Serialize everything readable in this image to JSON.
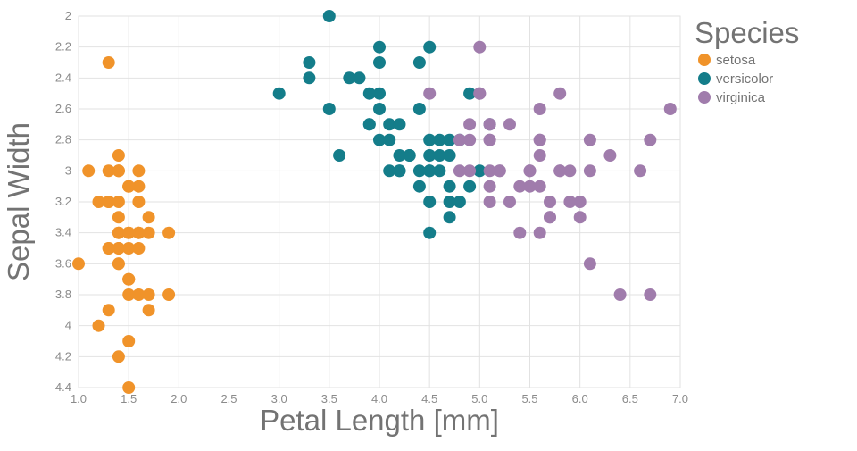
{
  "figure": {
    "xlabel": "Petal Length [mm]",
    "ylabel": "Sepal Width",
    "legend_title": "Species"
  },
  "colors": {
    "setosa": "#F0932A",
    "versicolor": "#147D8A",
    "virginica": "#A07CAC",
    "grid": "#E2E2E2",
    "tick_text": "#8B8B8B",
    "title_text": "#737373",
    "background": "#FFFFFF"
  },
  "chart_data": {
    "type": "scatter",
    "title": "",
    "xlabel": "Petal Length [mm]",
    "ylabel": "Sepal Width",
    "xlim": [
      1.0,
      7.0
    ],
    "ylim": [
      2.0,
      4.4
    ],
    "y_axis_reversed": true,
    "grid": true,
    "marker_radius": 7,
    "x_ticks": [
      "1.0",
      "1.5",
      "2.0",
      "2.5",
      "3.0",
      "3.5",
      "4.0",
      "4.5",
      "5.0",
      "5.5",
      "6.0",
      "6.5",
      "7.0"
    ],
    "y_ticks": [
      "2",
      "2.2",
      "2.4",
      "2.6",
      "2.8",
      "3",
      "3.2",
      "3.4",
      "3.6",
      "3.8",
      "4",
      "4.2",
      "4.4"
    ],
    "legend": {
      "title": "Species",
      "position": "right"
    },
    "series": [
      {
        "name": "setosa",
        "color": "#F0932A",
        "points": [
          [
            1.4,
            3.5
          ],
          [
            1.4,
            3.0
          ],
          [
            1.3,
            3.2
          ],
          [
            1.5,
            3.1
          ],
          [
            1.4,
            3.6
          ],
          [
            1.7,
            3.9
          ],
          [
            1.4,
            3.4
          ],
          [
            1.5,
            3.4
          ],
          [
            1.4,
            2.9
          ],
          [
            1.5,
            3.1
          ],
          [
            1.5,
            3.7
          ],
          [
            1.6,
            3.4
          ],
          [
            1.4,
            3.0
          ],
          [
            1.1,
            3.0
          ],
          [
            1.2,
            4.0
          ],
          [
            1.5,
            4.4
          ],
          [
            1.3,
            3.9
          ],
          [
            1.4,
            3.5
          ],
          [
            1.7,
            3.8
          ],
          [
            1.5,
            3.8
          ],
          [
            1.7,
            3.4
          ],
          [
            1.5,
            3.7
          ],
          [
            1.0,
            3.6
          ],
          [
            1.7,
            3.3
          ],
          [
            1.9,
            3.4
          ],
          [
            1.6,
            3.0
          ],
          [
            1.6,
            3.4
          ],
          [
            1.5,
            3.5
          ],
          [
            1.4,
            3.4
          ],
          [
            1.6,
            3.2
          ],
          [
            1.6,
            3.1
          ],
          [
            1.5,
            3.4
          ],
          [
            1.5,
            4.1
          ],
          [
            1.4,
            4.2
          ],
          [
            1.5,
            3.1
          ],
          [
            1.2,
            3.2
          ],
          [
            1.3,
            3.5
          ],
          [
            1.4,
            3.6
          ],
          [
            1.3,
            3.0
          ],
          [
            1.5,
            3.4
          ],
          [
            1.3,
            3.5
          ],
          [
            1.3,
            2.3
          ],
          [
            1.3,
            3.2
          ],
          [
            1.6,
            3.5
          ],
          [
            1.9,
            3.8
          ],
          [
            1.4,
            3.0
          ],
          [
            1.6,
            3.8
          ],
          [
            1.4,
            3.2
          ],
          [
            1.5,
            3.7
          ],
          [
            1.4,
            3.3
          ]
        ]
      },
      {
        "name": "versicolor",
        "color": "#147D8A",
        "points": [
          [
            4.7,
            3.2
          ],
          [
            4.5,
            3.2
          ],
          [
            4.9,
            3.1
          ],
          [
            4.0,
            2.3
          ],
          [
            4.6,
            2.8
          ],
          [
            4.5,
            2.8
          ],
          [
            4.7,
            3.3
          ],
          [
            3.3,
            2.4
          ],
          [
            4.6,
            2.9
          ],
          [
            3.9,
            2.7
          ],
          [
            3.5,
            2.0
          ],
          [
            4.2,
            3.0
          ],
          [
            4.0,
            2.2
          ],
          [
            4.7,
            2.9
          ],
          [
            3.6,
            2.9
          ],
          [
            4.4,
            3.1
          ],
          [
            4.5,
            3.0
          ],
          [
            4.1,
            2.7
          ],
          [
            4.5,
            2.2
          ],
          [
            3.9,
            2.5
          ],
          [
            4.8,
            3.2
          ],
          [
            4.0,
            2.8
          ],
          [
            4.9,
            2.5
          ],
          [
            4.7,
            2.8
          ],
          [
            4.3,
            2.9
          ],
          [
            4.4,
            3.0
          ],
          [
            4.8,
            2.8
          ],
          [
            5.0,
            3.0
          ],
          [
            4.5,
            2.9
          ],
          [
            3.5,
            2.6
          ],
          [
            3.8,
            2.4
          ],
          [
            3.7,
            2.4
          ],
          [
            3.9,
            2.7
          ],
          [
            5.1,
            2.7
          ],
          [
            4.5,
            3.0
          ],
          [
            4.5,
            3.4
          ],
          [
            4.7,
            3.1
          ],
          [
            4.4,
            2.3
          ],
          [
            4.1,
            3.0
          ],
          [
            4.0,
            2.5
          ],
          [
            4.4,
            2.6
          ],
          [
            4.6,
            3.0
          ],
          [
            4.0,
            2.6
          ],
          [
            3.3,
            2.3
          ],
          [
            4.2,
            2.7
          ],
          [
            4.2,
            3.0
          ],
          [
            4.2,
            2.9
          ],
          [
            4.3,
            2.9
          ],
          [
            3.0,
            2.5
          ],
          [
            4.1,
            2.8
          ]
        ]
      },
      {
        "name": "virginica",
        "color": "#A07CAC",
        "points": [
          [
            6.0,
            3.3
          ],
          [
            5.1,
            2.7
          ],
          [
            5.9,
            3.0
          ],
          [
            5.6,
            2.9
          ],
          [
            5.8,
            3.0
          ],
          [
            6.6,
            3.0
          ],
          [
            4.5,
            2.5
          ],
          [
            6.3,
            2.9
          ],
          [
            5.8,
            2.5
          ],
          [
            6.1,
            3.6
          ],
          [
            5.1,
            3.2
          ],
          [
            5.3,
            2.7
          ],
          [
            5.5,
            3.0
          ],
          [
            5.0,
            2.5
          ],
          [
            5.1,
            2.8
          ],
          [
            5.3,
            3.2
          ],
          [
            5.5,
            3.0
          ],
          [
            6.7,
            3.8
          ],
          [
            6.9,
            2.6
          ],
          [
            5.0,
            2.2
          ],
          [
            5.7,
            3.2
          ],
          [
            4.9,
            2.8
          ],
          [
            6.7,
            2.8
          ],
          [
            4.9,
            2.7
          ],
          [
            5.7,
            3.3
          ],
          [
            6.0,
            3.2
          ],
          [
            4.8,
            2.8
          ],
          [
            4.9,
            3.0
          ],
          [
            5.6,
            2.8
          ],
          [
            5.8,
            3.0
          ],
          [
            6.1,
            2.8
          ],
          [
            6.4,
            3.8
          ],
          [
            5.6,
            2.8
          ],
          [
            5.1,
            2.8
          ],
          [
            5.6,
            2.6
          ],
          [
            6.1,
            3.0
          ],
          [
            5.6,
            3.4
          ],
          [
            5.5,
            3.1
          ],
          [
            4.8,
            3.0
          ],
          [
            5.4,
            3.1
          ],
          [
            5.6,
            3.1
          ],
          [
            5.1,
            3.1
          ],
          [
            5.1,
            2.7
          ],
          [
            5.9,
            3.2
          ],
          [
            5.7,
            3.3
          ],
          [
            5.2,
            3.0
          ],
          [
            5.0,
            2.5
          ],
          [
            5.2,
            3.0
          ],
          [
            5.4,
            3.4
          ],
          [
            5.1,
            3.0
          ]
        ]
      }
    ]
  }
}
